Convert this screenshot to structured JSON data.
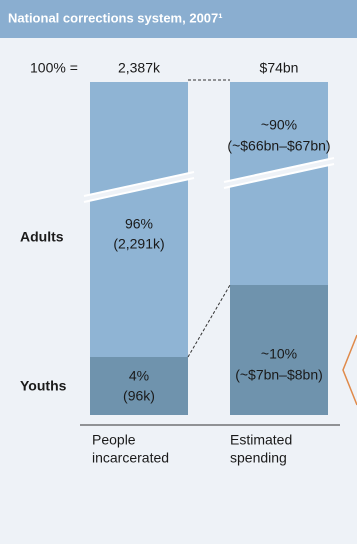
{
  "header": {
    "title": "National corrections system, 2007¹"
  },
  "totals": {
    "label": "100% =",
    "people": "2,387k",
    "spending": "$74bn"
  },
  "rows": {
    "adults": "Adults",
    "youths": "Youths"
  },
  "bars": {
    "people": {
      "adults": {
        "share": "96%",
        "detail": "(2,291k)"
      },
      "youths": {
        "share": "4%",
        "detail": "(96k)"
      },
      "caption": [
        "People",
        "incarcerated"
      ]
    },
    "spending": {
      "adults": {
        "share": "~90%",
        "detail": "(~$66bn–$67bn)"
      },
      "youths": {
        "share": "~10%",
        "detail": "(~$7bn–$8bn)"
      },
      "caption": [
        "Estimated",
        "spending"
      ]
    }
  }
}
